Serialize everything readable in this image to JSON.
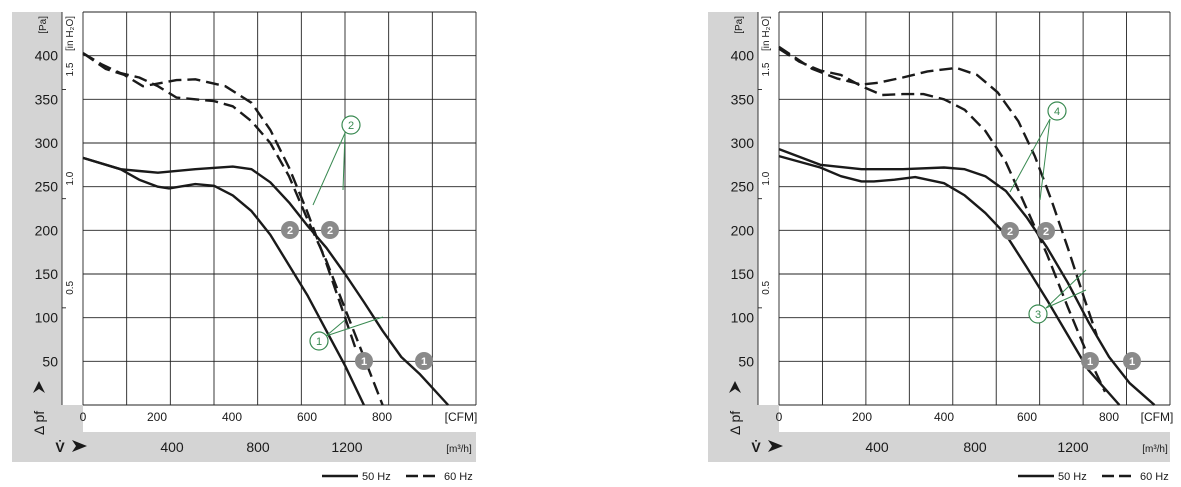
{
  "chart_data": [
    {
      "type": "line",
      "x_unit": "[CFM]",
      "y_unit": "[Pa]",
      "y2_unit": "[in H₂O]",
      "x_ticks": [
        "0",
        "200",
        "400",
        "600",
        "800"
      ],
      "x_unit_label": "[CFM]",
      "x2_ticks": [
        "400",
        "800",
        "1200"
      ],
      "x2_unit": "[m³/h]",
      "y_ticks": [
        "400",
        "350",
        "300",
        "250",
        "200",
        "150",
        "100",
        "50"
      ],
      "y2_ticks": [
        "1.5",
        "1.0",
        "0.5"
      ],
      "y_axis_symbol": "Δ pf",
      "flow_symbol": "V̇",
      "xlim": [
        0,
        1050
      ],
      "ylim": [
        0,
        450
      ],
      "series": [
        {
          "name": "50 Hz",
          "style": "solid",
          "x": [
            0,
            100,
            150,
            200,
            230,
            300,
            350,
            400,
            450,
            500,
            550,
            600,
            650,
            700,
            750
          ],
          "y": [
            283,
            270,
            258,
            250,
            248,
            253,
            251,
            240,
            222,
            195,
            160,
            125,
            85,
            45,
            0
          ]
        },
        {
          "name": "50 Hz",
          "style": "solid",
          "x": [
            0,
            100,
            150,
            200,
            300,
            400,
            450,
            500,
            550,
            600,
            650,
            700,
            750,
            800,
            850,
            900,
            975
          ],
          "y": [
            283,
            270,
            268,
            266,
            270,
            273,
            270,
            255,
            232,
            205,
            180,
            150,
            118,
            85,
            55,
            35,
            0
          ]
        },
        {
          "name": "60 Hz",
          "style": "dashed",
          "x": [
            0,
            50,
            100,
            150,
            200,
            250,
            300,
            350,
            400,
            450,
            500,
            550,
            600,
            650,
            700,
            750,
            800
          ],
          "y": [
            403,
            390,
            380,
            375,
            365,
            352,
            350,
            348,
            342,
            325,
            300,
            262,
            212,
            165,
            110,
            55,
            0
          ]
        },
        {
          "name": "60 Hz",
          "style": "dashed",
          "x": [
            0,
            60,
            110,
            160,
            200,
            250,
            300,
            380,
            450,
            500,
            550,
            600,
            650,
            700,
            730
          ],
          "y": [
            403,
            385,
            378,
            365,
            368,
            372,
            373,
            365,
            346,
            315,
            272,
            220,
            162,
            100,
            62
          ]
        }
      ],
      "badges": [
        "2",
        "2",
        "1",
        "1"
      ],
      "callouts": [
        "2",
        "1"
      ],
      "legend": {
        "solid": "50 Hz",
        "dashed": "60 Hz"
      }
    },
    {
      "type": "line",
      "x_unit": "[CFM]",
      "y_unit": "[Pa]",
      "y2_unit": "[in H₂O]",
      "x_ticks": [
        "0",
        "200",
        "400",
        "600",
        "800"
      ],
      "x_unit_label": "[CFM]",
      "x2_ticks": [
        "400",
        "800",
        "1200"
      ],
      "x2_unit": "[m³/h]",
      "y_ticks": [
        "400",
        "350",
        "300",
        "250",
        "200",
        "150",
        "100",
        "50"
      ],
      "y2_ticks": [
        "1.5",
        "1.0",
        "0.5"
      ],
      "y_axis_symbol": "Δ pf",
      "flow_symbol": "V̇",
      "xlim": [
        0,
        950
      ],
      "ylim": [
        0,
        450
      ],
      "series": [
        {
          "name": "50 Hz",
          "style": "solid",
          "x": [
            0,
            100,
            150,
            200,
            230,
            280,
            330,
            400,
            450,
            500,
            550,
            600,
            650,
            700,
            750,
            825
          ],
          "y": [
            285,
            272,
            262,
            256,
            256,
            258,
            261,
            254,
            240,
            220,
            195,
            158,
            120,
            80,
            40,
            0
          ]
        },
        {
          "name": "50 Hz",
          "style": "solid",
          "x": [
            0,
            100,
            200,
            300,
            400,
            450,
            500,
            550,
            600,
            650,
            700,
            750,
            800,
            850,
            910
          ],
          "y": [
            293,
            275,
            270,
            270,
            272,
            270,
            262,
            245,
            215,
            180,
            140,
            95,
            55,
            25,
            0
          ]
        },
        {
          "name": "60 Hz",
          "style": "dashed",
          "x": [
            0,
            50,
            100,
            150,
            200,
            250,
            300,
            350,
            400,
            450,
            500,
            550,
            600,
            650,
            700,
            750,
            790
          ],
          "y": [
            408,
            393,
            383,
            378,
            365,
            355,
            356,
            356,
            350,
            338,
            314,
            278,
            225,
            172,
            112,
            55,
            15
          ]
        },
        {
          "name": "60 Hz",
          "style": "dashed",
          "x": [
            0,
            80,
            140,
            200,
            240,
            300,
            360,
            430,
            480,
            530,
            580,
            620,
            660,
            700,
            740,
            770
          ],
          "y": [
            410,
            385,
            374,
            367,
            369,
            375,
            382,
            386,
            378,
            358,
            325,
            285,
            235,
            180,
            122,
            80
          ]
        }
      ],
      "badges": [
        "2",
        "2",
        "1",
        "1"
      ],
      "callouts": [
        "4",
        "3"
      ],
      "legend": {
        "solid": "50 Hz",
        "dashed": "60 Hz"
      }
    }
  ]
}
